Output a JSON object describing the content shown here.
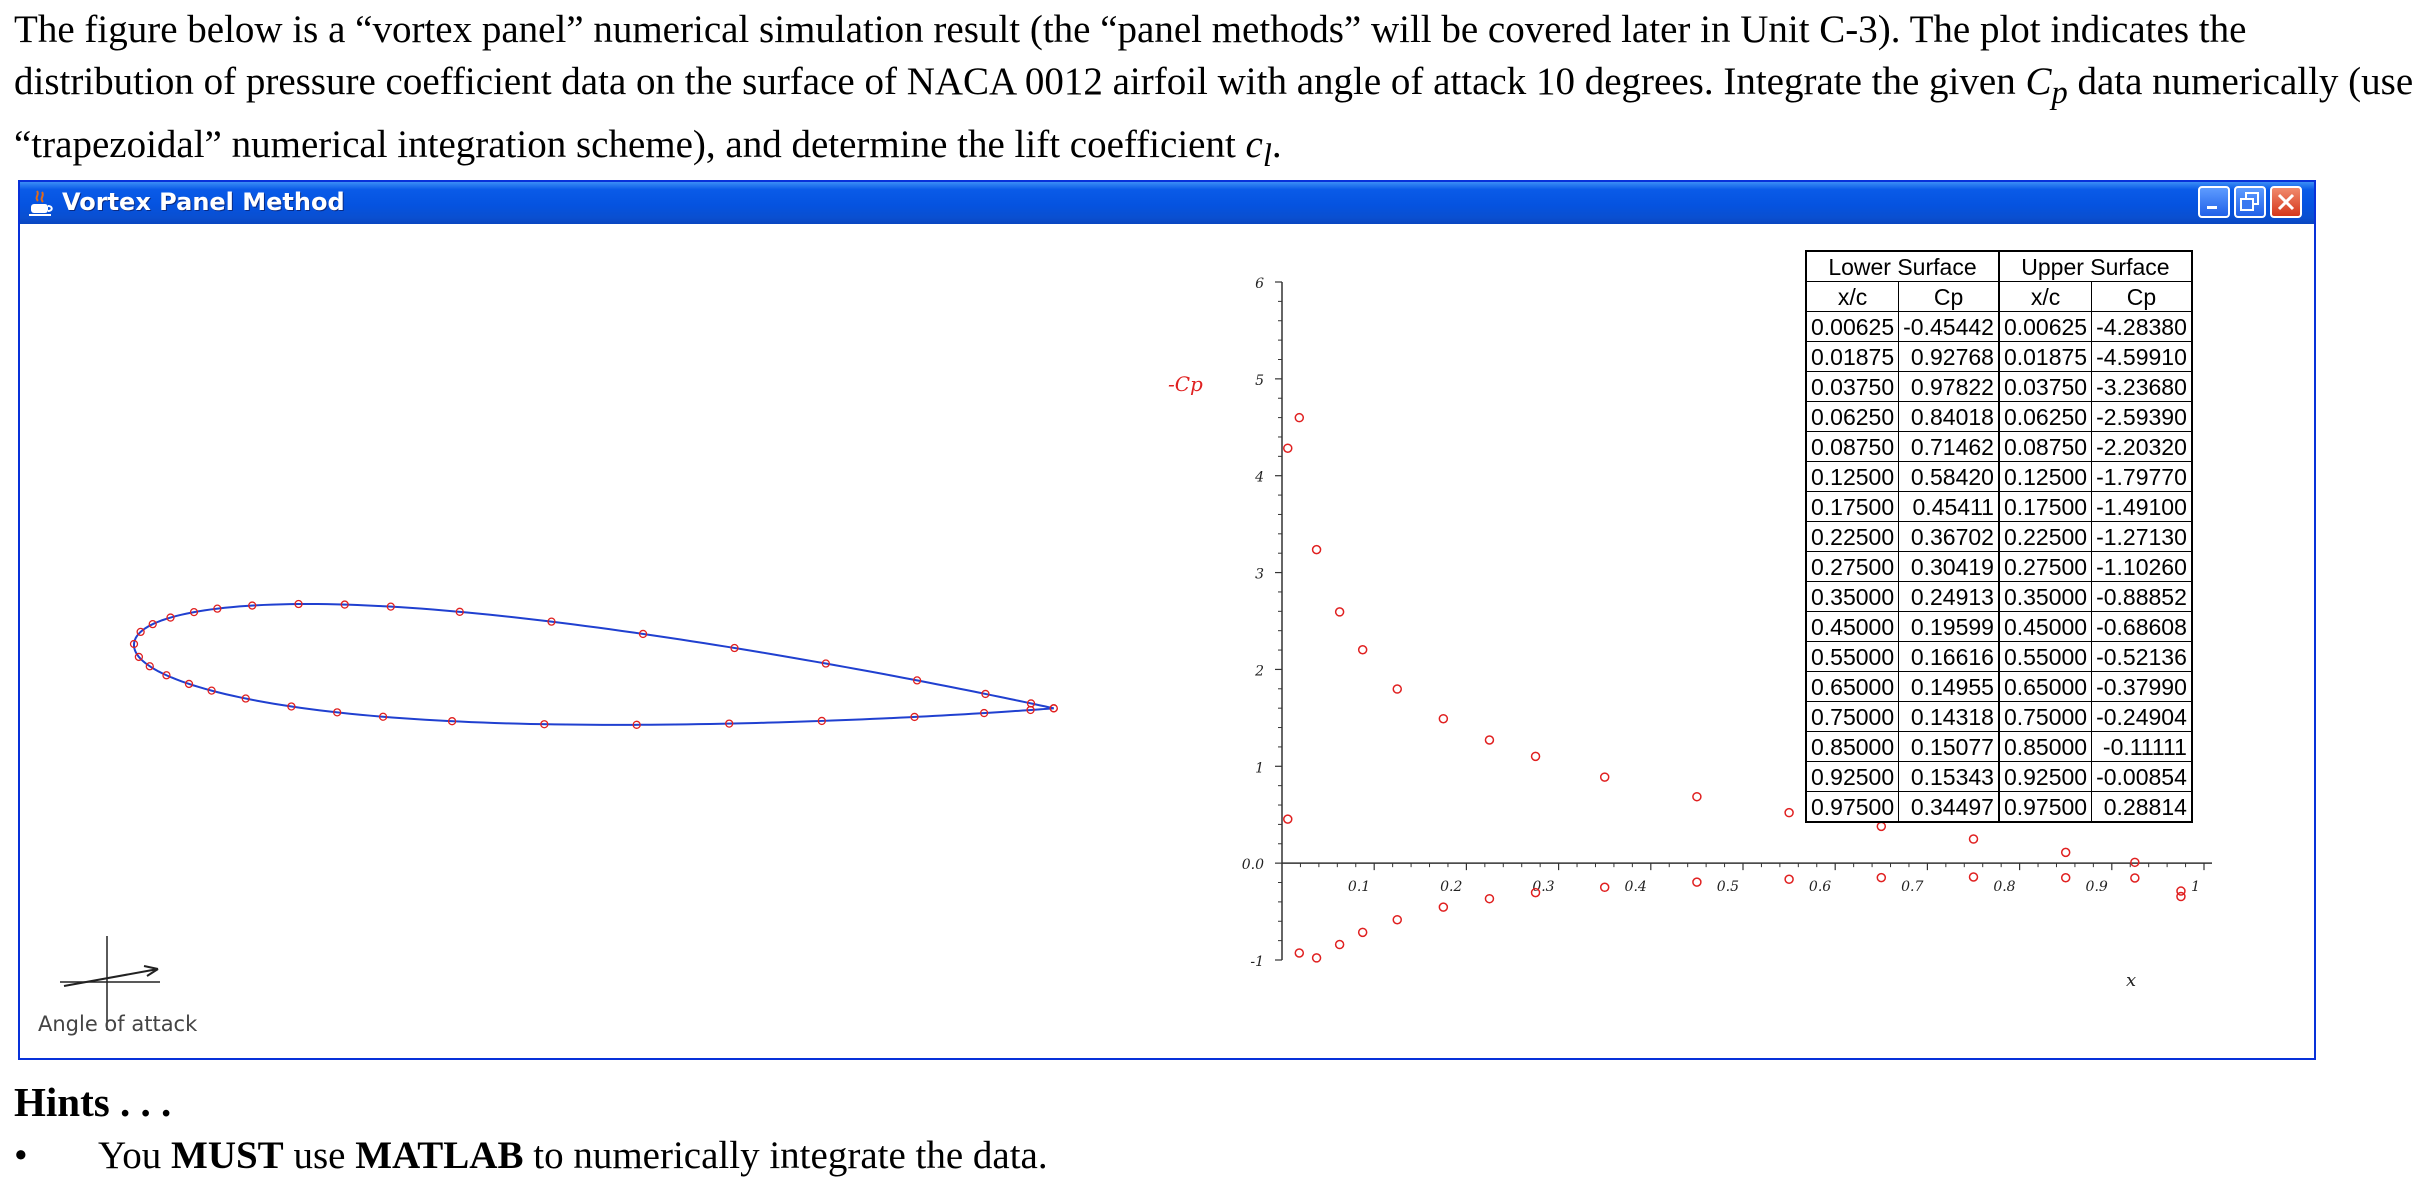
{
  "intro": {
    "part1": "The figure below is a “vortex panel” numerical simulation result (the “panel methods” will be covered later in Unit C-3).  The plot indicates the distribution of pressure coefficient data on the surface of NACA 0012 airfoil with angle of attack 10 degrees.  Integrate the given ",
    "cp_symbol": "C",
    "cp_sub": "p",
    "part2": " data numerically (use “trapezoidal” numerical integration scheme), and determine the lift coefficient ",
    "cl_symbol": "c",
    "cl_sub": "l",
    "part3": "."
  },
  "window": {
    "title": "Vortex Panel Method",
    "angle_label": "Angle of attack",
    "colors": {
      "titlebar": "#0553e0",
      "curve": "#2040d0",
      "points": "#e02020"
    }
  },
  "table": {
    "lower_header": "Lower Surface",
    "upper_header": "Upper Surface",
    "col_xc": "x/c",
    "col_cp": "Cp",
    "rows": [
      {
        "lx": "0.00625",
        "lcp": "-0.45442",
        "ux": "0.00625",
        "ucp": "-4.28380"
      },
      {
        "lx": "0.01875",
        "lcp": "0.92768",
        "ux": "0.01875",
        "ucp": "-4.59910"
      },
      {
        "lx": "0.03750",
        "lcp": "0.97822",
        "ux": "0.03750",
        "ucp": "-3.23680"
      },
      {
        "lx": "0.06250",
        "lcp": "0.84018",
        "ux": "0.06250",
        "ucp": "-2.59390"
      },
      {
        "lx": "0.08750",
        "lcp": "0.71462",
        "ux": "0.08750",
        "ucp": "-2.20320"
      },
      {
        "lx": "0.12500",
        "lcp": "0.58420",
        "ux": "0.12500",
        "ucp": "-1.79770"
      },
      {
        "lx": "0.17500",
        "lcp": "0.45411",
        "ux": "0.17500",
        "ucp": "-1.49100"
      },
      {
        "lx": "0.22500",
        "lcp": "0.36702",
        "ux": "0.22500",
        "ucp": "-1.27130"
      },
      {
        "lx": "0.27500",
        "lcp": "0.30419",
        "ux": "0.27500",
        "ucp": "-1.10260"
      },
      {
        "lx": "0.35000",
        "lcp": "0.24913",
        "ux": "0.35000",
        "ucp": "-0.88852"
      },
      {
        "lx": "0.45000",
        "lcp": "0.19599",
        "ux": "0.45000",
        "ucp": "-0.68608"
      },
      {
        "lx": "0.55000",
        "lcp": "0.16616",
        "ux": "0.55000",
        "ucp": "-0.52136"
      },
      {
        "lx": "0.65000",
        "lcp": "0.14955",
        "ux": "0.65000",
        "ucp": "-0.37990"
      },
      {
        "lx": "0.75000",
        "lcp": "0.14318",
        "ux": "0.75000",
        "ucp": "-0.24904"
      },
      {
        "lx": "0.85000",
        "lcp": "0.15077",
        "ux": "0.85000",
        "ucp": "-0.11111"
      },
      {
        "lx": "0.92500",
        "lcp": "0.15343",
        "ux": "0.92500",
        "ucp": "-0.00854"
      },
      {
        "lx": "0.97500",
        "lcp": "0.34497",
        "ux": "0.97500",
        "ucp": "0.28814"
      }
    ]
  },
  "chart_data": {
    "type": "scatter",
    "ylabel": "-Cp",
    "xlabel": "x",
    "xlim": [
      0,
      1
    ],
    "ylim": [
      -1,
      6
    ],
    "x_ticks": [
      "0.1",
      "0.2",
      "0.3",
      "0.4",
      "0.5",
      "0.6",
      "0.7",
      "0.8",
      "0.9",
      "1"
    ],
    "y_ticks": [
      "-1",
      "0.0",
      "1",
      "2",
      "3",
      "4",
      "5",
      "6"
    ],
    "series": [
      {
        "x": [
          0.00625,
          0.01875,
          0.0375,
          0.0625,
          0.0875,
          0.125,
          0.175,
          0.225,
          0.275,
          0.35,
          0.45,
          0.55,
          0.65,
          0.75,
          0.85,
          0.925,
          0.975
        ],
        "y": [
          4.2838,
          4.5991,
          3.2368,
          2.5939,
          2.2032,
          1.7977,
          1.491,
          1.2713,
          1.1026,
          0.88852,
          0.68608,
          0.52136,
          0.3799,
          0.24904,
          0.11111,
          0.00854,
          -0.28814
        ]
      },
      {
        "x": [
          0.00625,
          0.01875,
          0.0375,
          0.0625,
          0.0875,
          0.125,
          0.175,
          0.225,
          0.275,
          0.35,
          0.45,
          0.55,
          0.65,
          0.75,
          0.85,
          0.925,
          0.975
        ],
        "y": [
          0.45442,
          -0.92768,
          -0.97822,
          -0.84018,
          -0.71462,
          -0.5842,
          -0.45411,
          -0.36702,
          -0.30419,
          -0.24913,
          -0.19599,
          -0.16616,
          -0.14955,
          -0.14318,
          -0.15077,
          -0.15343,
          -0.34497
        ]
      }
    ]
  },
  "hints": {
    "heading": "Hints . . .",
    "bullet": "•",
    "items": [
      {
        "pre": "You ",
        "bold1": "MUST",
        "mid": " use ",
        "bold2": "MATLAB",
        "post": " to numerically integrate the data."
      }
    ]
  }
}
